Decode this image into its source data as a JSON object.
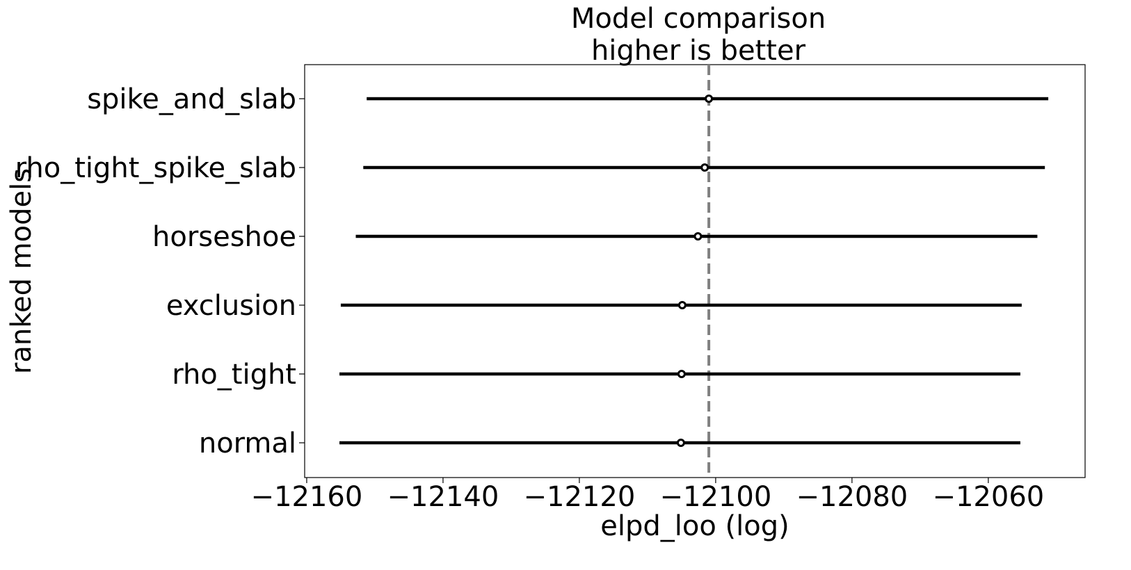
{
  "chart_data": {
    "type": "forest",
    "title": "Model comparison",
    "subtitle": "higher is better",
    "xlabel": "elpd_loo (log)",
    "ylabel": "ranked models",
    "xlim": [
      -12160.3,
      -12045.8
    ],
    "xticks": [
      -12160,
      -12140,
      -12120,
      -12100,
      -12080,
      -12060
    ],
    "xtick_labels": [
      "−12160",
      "−12140",
      "−12120",
      "−12100",
      "−12080",
      "−12060"
    ],
    "grid": false,
    "reference_line": {
      "value": -12101.0,
      "style": "dashed",
      "color": "#808080"
    },
    "models": [
      {
        "name": "spike_and_slab",
        "elpd": -12101.0,
        "lower": -12151.2,
        "upper": -12051.2
      },
      {
        "name": "rho_tight_spike_slab",
        "elpd": -12101.6,
        "lower": -12151.7,
        "upper": -12051.7
      },
      {
        "name": "horseshoe",
        "elpd": -12102.6,
        "lower": -12152.8,
        "upper": -12052.8
      },
      {
        "name": "exclusion",
        "elpd": -12104.9,
        "lower": -12155.0,
        "upper": -12055.1
      },
      {
        "name": "rho_tight",
        "elpd": -12105.0,
        "lower": -12155.2,
        "upper": -12055.3
      },
      {
        "name": "normal",
        "elpd": -12105.1,
        "lower": -12155.2,
        "upper": -12055.3
      }
    ],
    "colors": {
      "interval": "#000000",
      "point_fill": "#ffffff",
      "point_edge": "#000000"
    }
  }
}
